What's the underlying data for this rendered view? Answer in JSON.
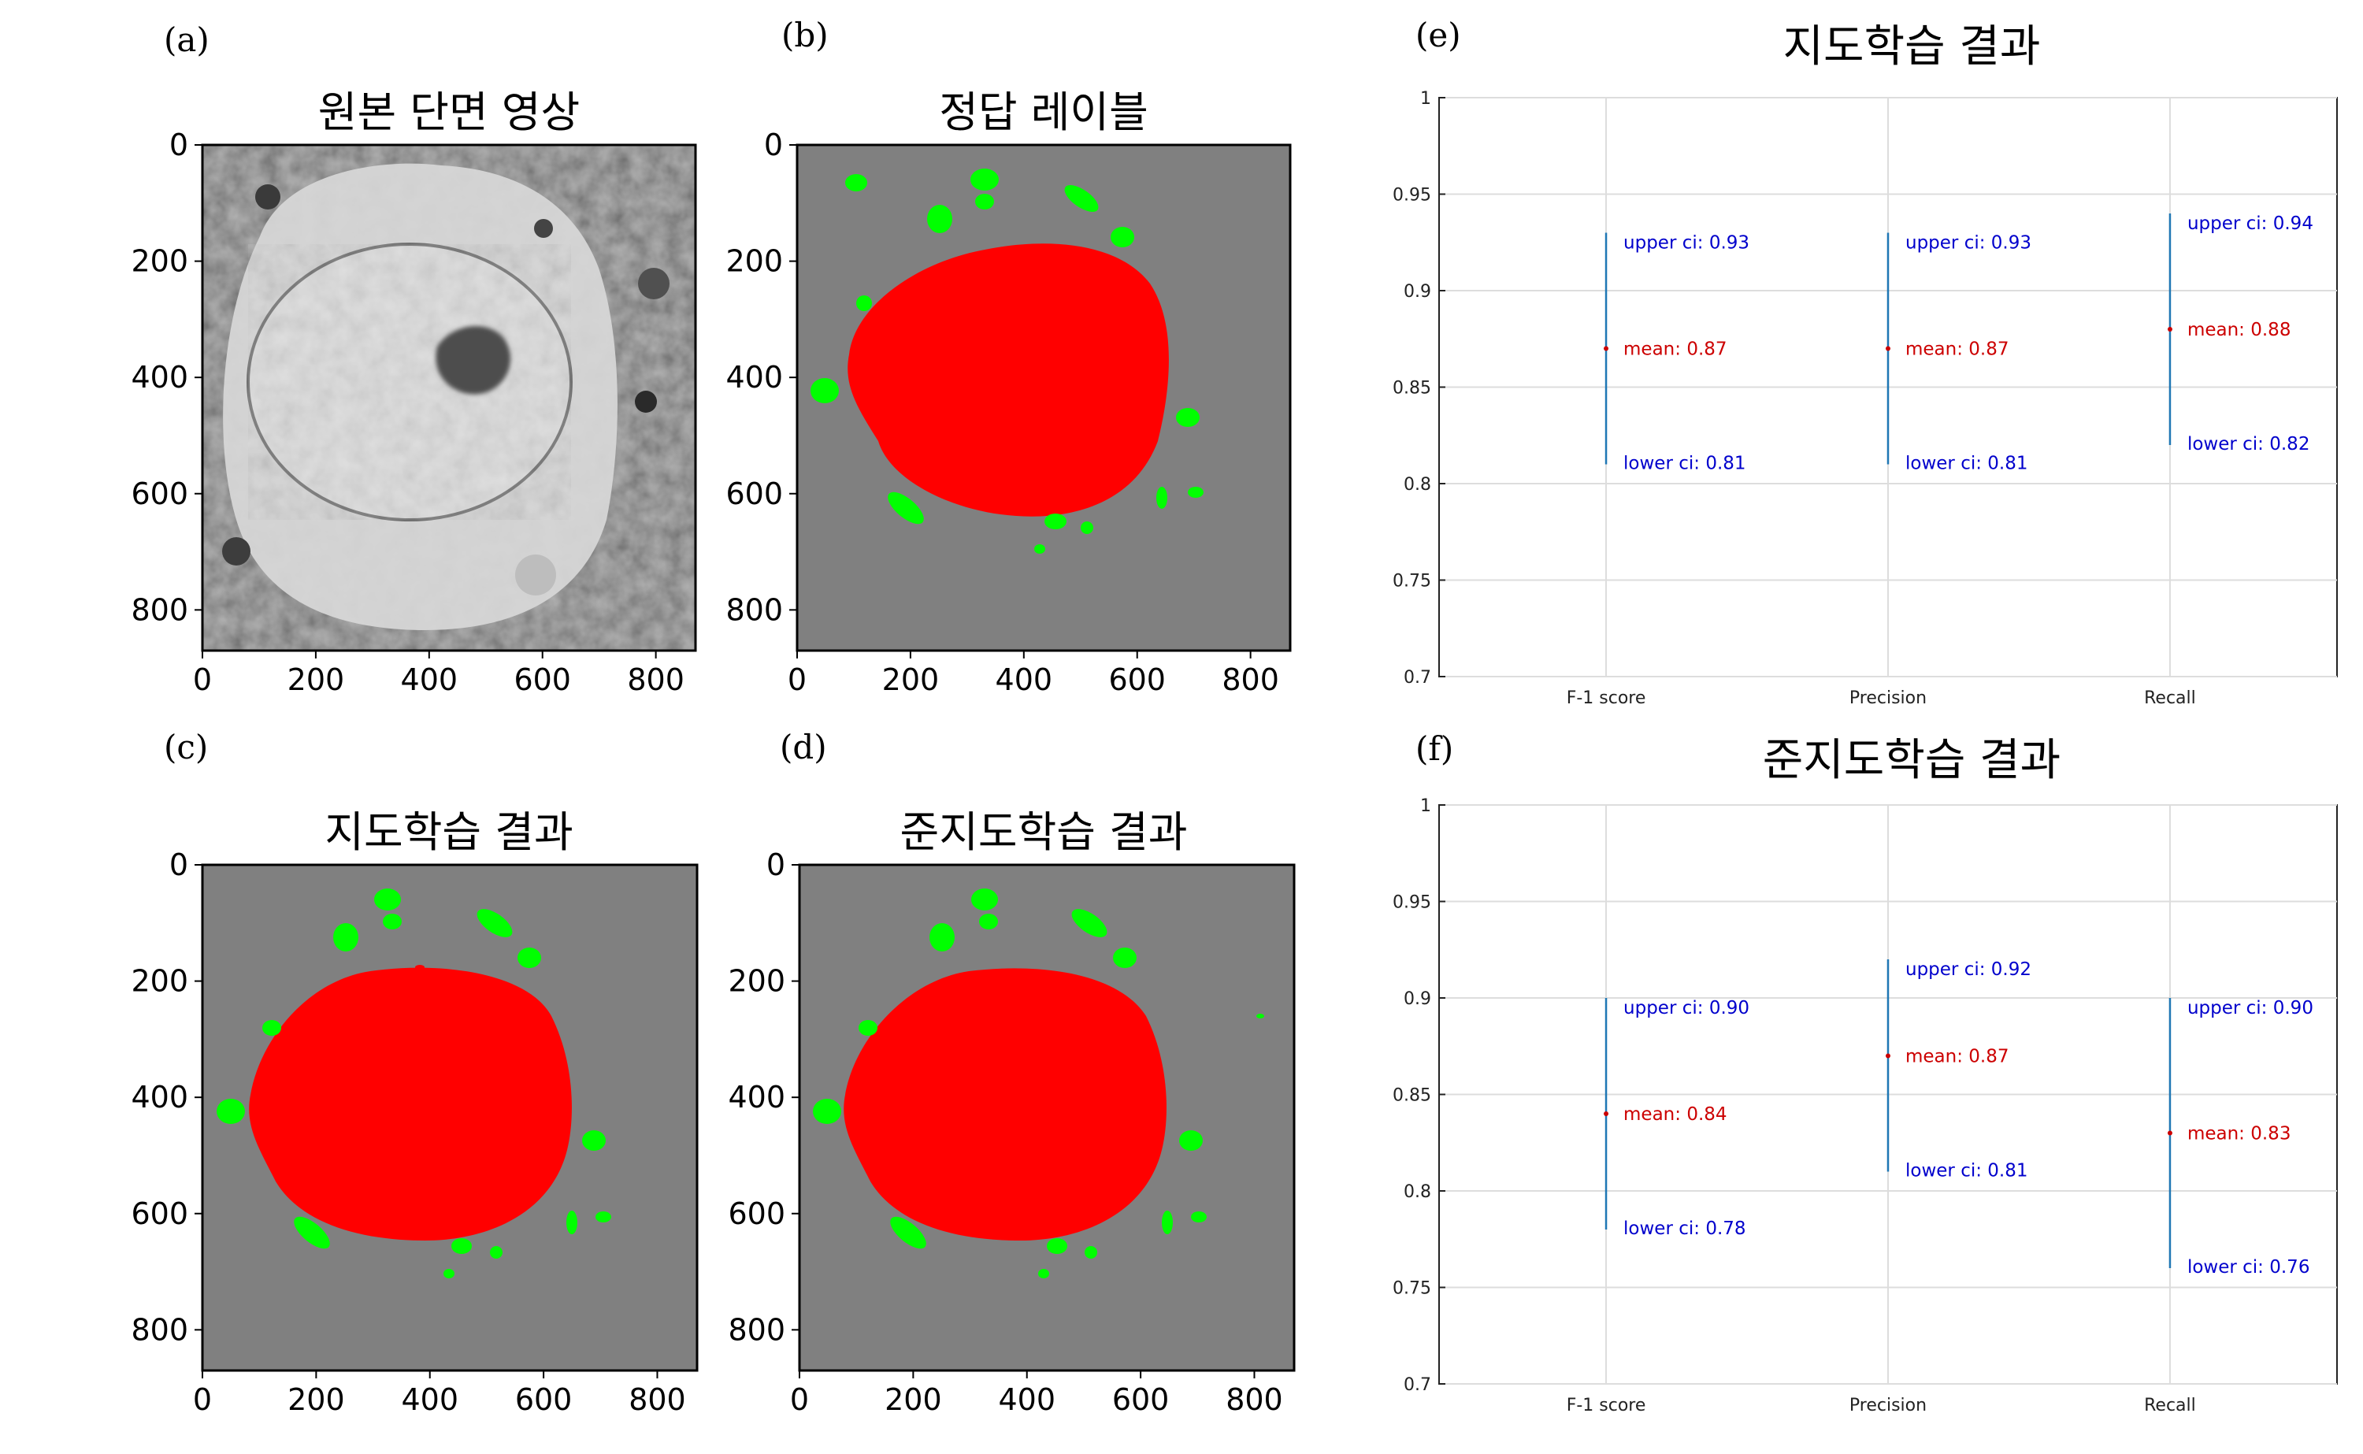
{
  "panels": [
    {
      "letter": "(a)",
      "title": "원본 단면 영상"
    },
    {
      "letter": "(b)",
      "title": "정답 레이블"
    },
    {
      "letter": "(c)",
      "title": "지도학습 결과"
    },
    {
      "letter": "(d)",
      "title": "준지도학습 결과"
    },
    {
      "letter": "(e)"
    },
    {
      "letter": "(f)"
    }
  ],
  "image_axis_ticks": [
    "0",
    "200",
    "400",
    "600",
    "800"
  ],
  "colors": {
    "background": "#808080",
    "nucleus": "#ff0000",
    "organelle": "#00ff00",
    "ci_line": "#1f77b4",
    "ci_text": "#0000cc",
    "mean_text": "#cc0000"
  },
  "chart_data": [
    {
      "type": "errorbar",
      "title": "지도학습 결과",
      "categories": [
        "F-1 score",
        "Precision",
        "Recall"
      ],
      "ylim": [
        0.7,
        1
      ],
      "yticks": [
        "0.7",
        "0.75",
        "0.8",
        "0.85",
        "0.9",
        "0.95",
        "1"
      ],
      "grid": true,
      "series": [
        {
          "mean": 0.87,
          "upper": 0.93,
          "lower": 0.81,
          "mean_label": "mean: 0.87",
          "upper_label": "upper ci: 0.93",
          "lower_label": "lower ci: 0.81"
        },
        {
          "mean": 0.87,
          "upper": 0.93,
          "lower": 0.81,
          "mean_label": "mean: 0.87",
          "upper_label": "upper ci: 0.93",
          "lower_label": "lower ci: 0.81"
        },
        {
          "mean": 0.88,
          "upper": 0.94,
          "lower": 0.82,
          "mean_label": "mean: 0.88",
          "upper_label": "upper ci: 0.94",
          "lower_label": "lower ci: 0.82"
        }
      ]
    },
    {
      "type": "errorbar",
      "title": "준지도학습 결과",
      "categories": [
        "F-1 score",
        "Precision",
        "Recall"
      ],
      "ylim": [
        0.7,
        1
      ],
      "yticks": [
        "0.7",
        "0.75",
        "0.8",
        "0.85",
        "0.9",
        "0.95",
        "1"
      ],
      "grid": true,
      "series": [
        {
          "mean": 0.84,
          "upper": 0.9,
          "lower": 0.78,
          "mean_label": "mean: 0.84",
          "upper_label": "upper ci: 0.90",
          "lower_label": "lower ci: 0.78"
        },
        {
          "mean": 0.87,
          "upper": 0.92,
          "lower": 0.81,
          "mean_label": "mean: 0.87",
          "upper_label": "upper ci: 0.92",
          "lower_label": "lower ci: 0.81"
        },
        {
          "mean": 0.83,
          "upper": 0.9,
          "lower": 0.76,
          "mean_label": "mean: 0.83",
          "upper_label": "upper ci: 0.90",
          "lower_label": "lower ci: 0.76"
        }
      ]
    }
  ]
}
